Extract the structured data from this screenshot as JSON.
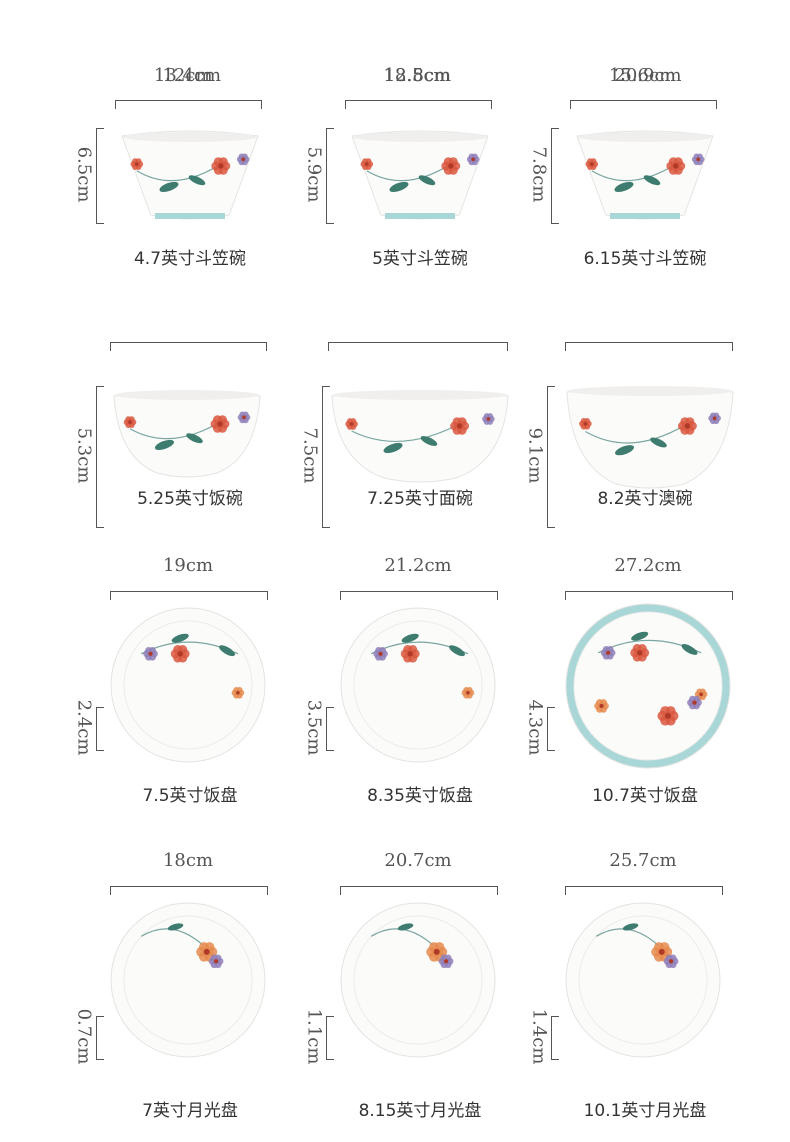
{
  "products": [
    {
      "width": "12cm",
      "height": "6.5cm",
      "name": "4.7英寸斗笠碗",
      "shape": "conical-bowl"
    },
    {
      "width": "12.8cm",
      "height": "5.9cm",
      "name": "5英寸斗笠碗",
      "shape": "conical-bowl"
    },
    {
      "width": "15.6cm",
      "height": "7.8cm",
      "name": "6.15英寸斗笠碗",
      "shape": "conical-bowl"
    },
    {
      "width": "13.4cm",
      "height": "5.3cm",
      "name": "5.25英寸饭碗",
      "shape": "rice-bowl"
    },
    {
      "width": "18.5cm",
      "height": "7.5cm",
      "name": "7.25英寸面碗",
      "shape": "noodle-bowl"
    },
    {
      "width": "20.9cm",
      "height": "9.1cm",
      "name": "8.2英寸澳碗",
      "shape": "deep-bowl"
    },
    {
      "width": "19cm",
      "height": "2.4cm",
      "name": "7.5英寸饭盘",
      "shape": "plate"
    },
    {
      "width": "21.2cm",
      "height": "3.5cm",
      "name": "8.35英寸饭盘",
      "shape": "plate"
    },
    {
      "width": "27.2cm",
      "height": "4.3cm",
      "name": "10.7英寸饭盘",
      "shape": "rimmed-plate"
    },
    {
      "width": "18cm",
      "height": "0.7cm",
      "name": "7英寸月光盘",
      "shape": "flat-plate"
    },
    {
      "width": "20.7cm",
      "height": "1.1cm",
      "name": "8.15英寸月光盘",
      "shape": "flat-plate"
    },
    {
      "width": "25.7cm",
      "height": "1.4cm",
      "name": "10.1英寸月光盘",
      "shape": "flat-plate"
    }
  ],
  "colors": {
    "porcelain": "#fbfbfa",
    "rim_teal": "#a9d6d6",
    "flower_red": "#d9573e",
    "flower_orange": "#e58a4e",
    "flower_purple": "#8e7fb8",
    "leaf_green": "#3f7c70",
    "line": "#555555"
  }
}
